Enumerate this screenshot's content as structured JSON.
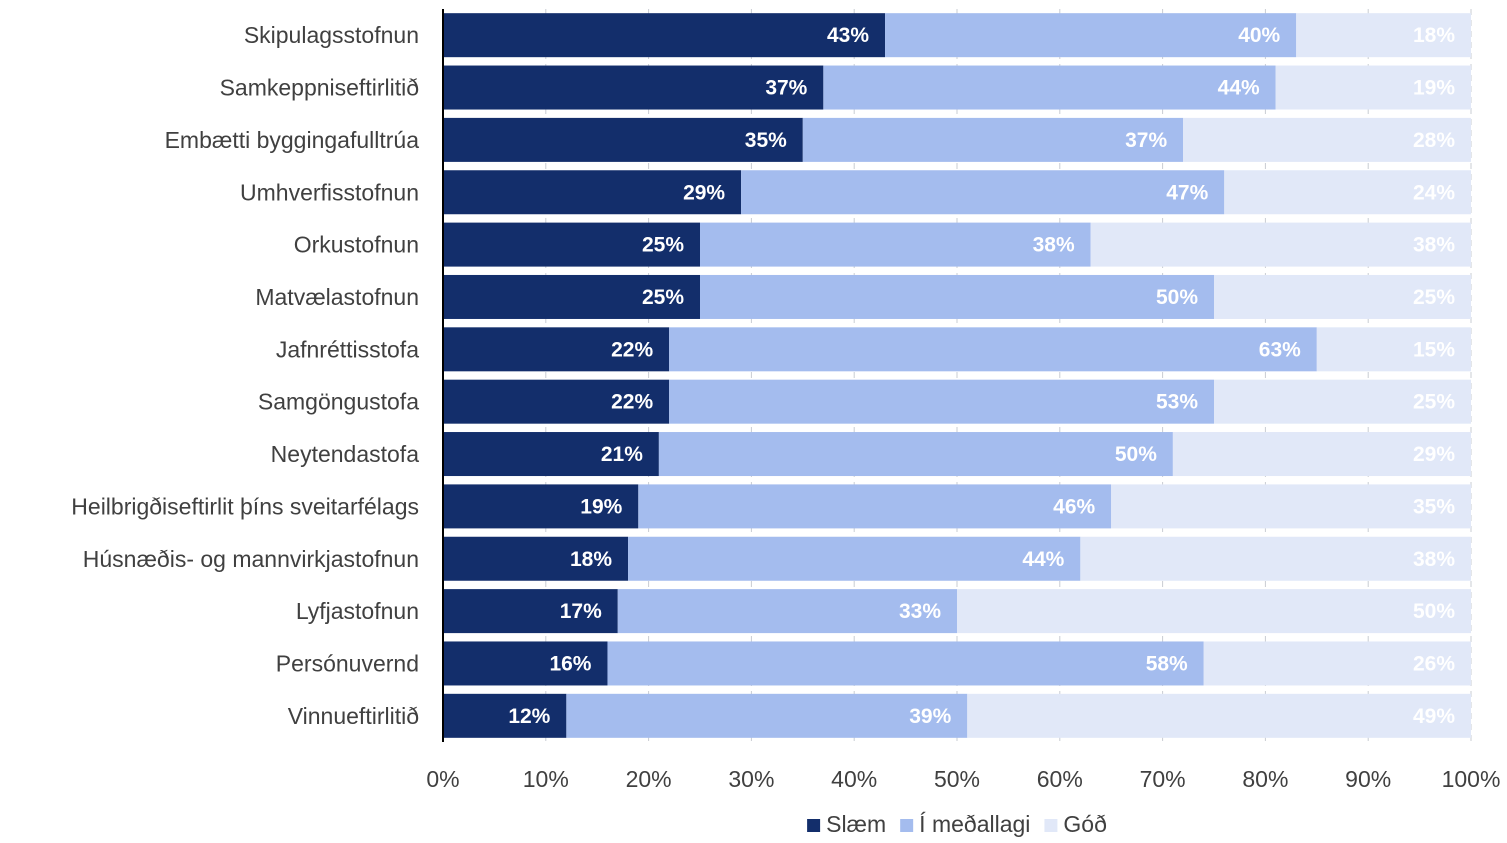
{
  "chart_data": {
    "type": "bar",
    "orientation": "horizontal",
    "stacked": true,
    "title": "",
    "xlabel": "",
    "ylabel": "",
    "xlim": [
      0,
      100
    ],
    "x_ticks": [
      "0%",
      "10%",
      "20%",
      "30%",
      "40%",
      "50%",
      "60%",
      "70%",
      "80%",
      "90%",
      "100%"
    ],
    "grid": true,
    "legend_position": "bottom",
    "categories": [
      "Skipulagsstofnun",
      "Samkeppniseftirlitið",
      "Embætti byggingafulltrúa",
      "Umhverfisstofnun",
      "Orkustofnun",
      "Matvælastofnun",
      "Jafnréttisstofa",
      "Samgöngustofa",
      "Neytendastofa",
      "Heilbrigðiseftirlit þíns sveitarfélags",
      "Húsnæðis- og mannvirkjastofnun",
      "Lyfjastofnun",
      "Persónuvernd",
      "Vinnueftirlitið"
    ],
    "series": [
      {
        "name": "Slæm",
        "color": "#132e6b",
        "values": [
          43,
          37,
          35,
          29,
          25,
          25,
          22,
          22,
          21,
          19,
          18,
          17,
          16,
          12
        ],
        "labels": [
          "43%",
          "37%",
          "35%",
          "29%",
          "25%",
          "25%",
          "22%",
          "22%",
          "21%",
          "19%",
          "18%",
          "17%",
          "16%",
          "12%"
        ]
      },
      {
        "name": "Í meðallagi",
        "color": "#a4bcee",
        "values": [
          40,
          44,
          37,
          47,
          38,
          50,
          63,
          53,
          50,
          46,
          44,
          33,
          58,
          39
        ],
        "labels": [
          "40%",
          "44%",
          "37%",
          "47%",
          "38%",
          "50%",
          "63%",
          "53%",
          "50%",
          "46%",
          "44%",
          "33%",
          "58%",
          "39%"
        ]
      },
      {
        "name": "Góð",
        "color": "#e1e8f8",
        "values": [
          18,
          19,
          28,
          24,
          38,
          25,
          15,
          25,
          29,
          35,
          38,
          50,
          26,
          49
        ],
        "labels": [
          "18%",
          "19%",
          "28%",
          "24%",
          "38%",
          "25%",
          "15%",
          "25%",
          "29%",
          "35%",
          "38%",
          "50%",
          "26%",
          "49%"
        ]
      }
    ]
  }
}
